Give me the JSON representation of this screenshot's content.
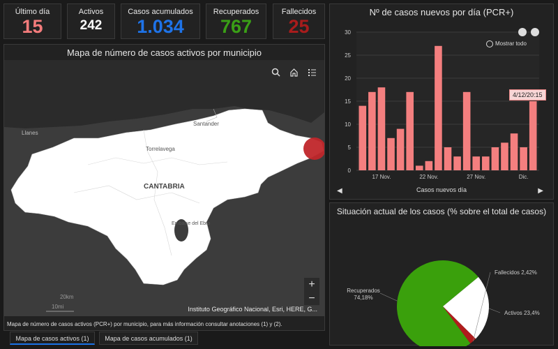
{
  "kpis": {
    "ultimo_dia": {
      "label": "Último día",
      "value": "15",
      "color": "#f47c7c"
    },
    "activos": {
      "label": "Activos",
      "value": "242",
      "color": "#ffffff"
    },
    "acumulados": {
      "label": "Casos acumulados",
      "value": "1.034",
      "color": "#1e73e8"
    },
    "recuperados": {
      "label": "Recuperados",
      "value": "767",
      "color": "#3a9f16"
    },
    "fallecidos": {
      "label": "Fallecidos",
      "value": "25",
      "color": "#a81c1c"
    }
  },
  "map": {
    "title": "Mapa de número de casos activos por municipio",
    "labels": {
      "llanes": "Llanes",
      "santander": "Santander",
      "torrelavega": "Torrelavega",
      "region": "CANTABRIA",
      "embalse": "Embalse del Ebro"
    },
    "scale": {
      "km": "20km",
      "mi": "10mi"
    },
    "attribution": "Instituto Geográfico Nacional, Esri, HERE, G...",
    "footnote": "Mapa de número de casos activos (PCR+) por municipio, para más información consultar anotaciones (1) y (2)."
  },
  "tabs": [
    "Mapa de casos activos (1)",
    "Mapa de casos acumulados (1)"
  ],
  "bar_panel": {
    "show_all": "Mostrar todo",
    "tooltip": "4/12/20:15",
    "footer": "Casos nuevos día"
  },
  "pie_panel": {
    "title": "Situación actual de los casos (% sobre el total de casos)"
  },
  "chart_data": [
    {
      "type": "bar",
      "title": "Nº de casos nuevos por día (PCR+)",
      "xlabel": "Casos nuevos día",
      "ylim": [
        0,
        30
      ],
      "yticks": [
        0,
        5,
        10,
        15,
        20,
        25,
        30
      ],
      "tick_labels": [
        "17 Nov.",
        "22 Nov.",
        "27 Nov.",
        "Dic."
      ],
      "values": [
        14,
        17,
        18,
        7,
        9,
        17,
        1,
        2,
        27,
        5,
        3,
        17,
        3,
        3,
        5,
        6,
        8,
        5,
        15
      ],
      "color": "#f47f7f",
      "grid": true
    },
    {
      "type": "pie",
      "labels": [
        "Recuperados",
        "Activos",
        "Fallecidos"
      ],
      "values": [
        74.18,
        23.4,
        2.42
      ],
      "label_texts": [
        "Recuperados 74,18%",
        "Activos 23,4%",
        "Fallecidos 2,42%"
      ],
      "colors": [
        "#3aa00c",
        "#ffffff",
        "#b01c1c"
      ]
    }
  ]
}
